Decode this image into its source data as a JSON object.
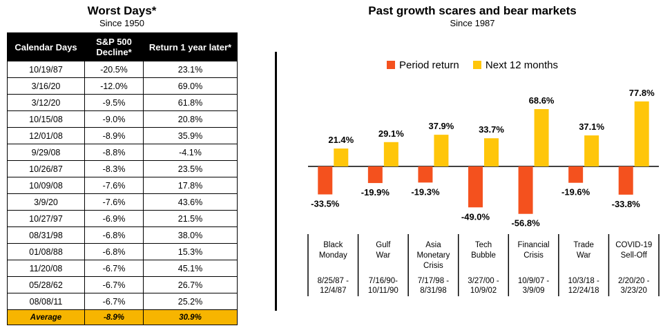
{
  "table": {
    "title": "Worst Days*",
    "subtitle": "Since 1950",
    "headers": [
      "Calendar Days",
      "S&P 500 Decline*",
      "Return 1 year later*"
    ],
    "rows": [
      [
        "10/19/87",
        "-20.5%",
        "23.1%"
      ],
      [
        "3/16/20",
        "-12.0%",
        "69.0%"
      ],
      [
        "3/12/20",
        "-9.5%",
        "61.8%"
      ],
      [
        "10/15/08",
        "-9.0%",
        "20.8%"
      ],
      [
        "12/01/08",
        "-8.9%",
        "35.9%"
      ],
      [
        "9/29/08",
        "-8.8%",
        "-4.1%"
      ],
      [
        "10/26/87",
        "-8.3%",
        "23.5%"
      ],
      [
        "10/09/08",
        "-7.6%",
        "17.8%"
      ],
      [
        "3/9/20",
        "-7.6%",
        "43.6%"
      ],
      [
        "10/27/97",
        "-6.9%",
        "21.5%"
      ],
      [
        "08/31/98",
        "-6.8%",
        "38.0%"
      ],
      [
        "01/08/88",
        "-6.8%",
        "15.3%"
      ],
      [
        "11/20/08",
        "-6.7%",
        "45.1%"
      ],
      [
        "05/28/62",
        "-6.7%",
        "26.7%"
      ],
      [
        "08/08/11",
        "-6.7%",
        "25.2%"
      ]
    ],
    "average": [
      "Average",
      "-8.9%",
      "30.9%"
    ]
  },
  "chart_data": {
    "type": "bar",
    "title": "Past growth scares and bear markets",
    "subtitle": "Since 1987",
    "categories": [
      {
        "name": [
          "Black",
          "Monday"
        ],
        "dates": [
          "8/25/87 -",
          "12/4/87"
        ]
      },
      {
        "name": [
          "Gulf",
          "War"
        ],
        "dates": [
          "7/16/90-",
          "10/11/90"
        ]
      },
      {
        "name": [
          "Asia",
          "Monetary",
          "Crisis"
        ],
        "dates": [
          "7/17/98 -",
          "8/31/98"
        ]
      },
      {
        "name": [
          "Tech",
          "Bubble"
        ],
        "dates": [
          "3/27/00 -",
          "10/9/02"
        ]
      },
      {
        "name": [
          "Financial",
          "Crisis"
        ],
        "dates": [
          "10/9/07 -",
          "3/9/09"
        ]
      },
      {
        "name": [
          "Trade",
          "War"
        ],
        "dates": [
          "10/3/18 -",
          "12/24/18"
        ]
      },
      {
        "name": [
          "COVID-19",
          "Sell-Off"
        ],
        "dates": [
          "2/20/20 -",
          "3/23/20"
        ]
      }
    ],
    "series": [
      {
        "name": "Period return",
        "color": "#f4511e",
        "values": [
          -33.5,
          -19.9,
          -19.3,
          -49.0,
          -56.8,
          -19.6,
          -33.8
        ],
        "labels": [
          "-33.5%",
          "-19.9%",
          "-19.3%",
          "-49.0%",
          "-56.8%",
          "-19.6%",
          "-33.8%"
        ]
      },
      {
        "name": "Next 12 months",
        "color": "#ffc60a",
        "values": [
          21.4,
          29.1,
          37.9,
          33.7,
          68.6,
          37.1,
          77.8
        ],
        "labels": [
          "21.4%",
          "29.1%",
          "37.9%",
          "33.7%",
          "68.6%",
          "37.1%",
          "77.8%"
        ]
      }
    ],
    "legend_position": "top-center",
    "grid": false
  }
}
